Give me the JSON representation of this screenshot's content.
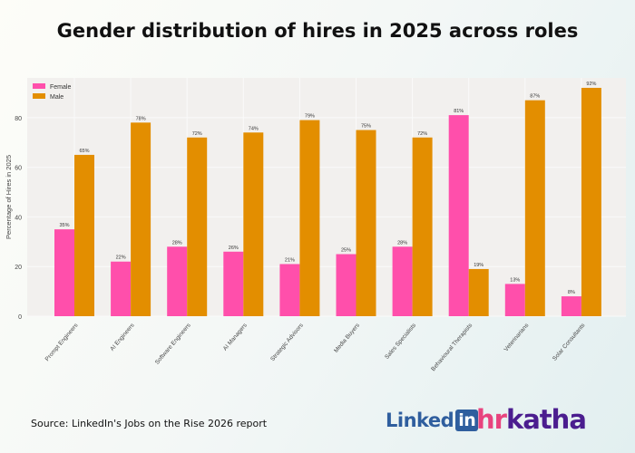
{
  "title": "Gender distribution of hires in 2025 across roles",
  "source": "Source: LinkedIn's Jobs on the Rise 2026 report",
  "logos": {
    "linkedin": "LinkedIn",
    "hrkatha": "hrkatha"
  },
  "chart_data": {
    "type": "bar",
    "title": "Gender distribution of hires in 2025 across roles",
    "xlabel": "",
    "ylabel": "Percentage of Hires in 2025",
    "ylim": [
      0,
      96
    ],
    "yticks": [
      0,
      20,
      40,
      60,
      80
    ],
    "grid": true,
    "legend_position": "top-left",
    "categories": [
      "Prompt Engineers",
      "AI Engineers",
      "Software Engineers",
      "AI Managers",
      "Strategic Advisors",
      "Media Buyers",
      "Sales Specialists",
      "Behavioural Therapists",
      "Veterinarians",
      "Solar Consultants"
    ],
    "series": [
      {
        "name": "Female",
        "color": "#ff4fab",
        "values": [
          35,
          22,
          28,
          26,
          21,
          25,
          28,
          81,
          13,
          8
        ]
      },
      {
        "name": "Male",
        "color": "#e38e00",
        "values": [
          65,
          78,
          72,
          74,
          79,
          75,
          72,
          19,
          87,
          92
        ]
      }
    ]
  }
}
